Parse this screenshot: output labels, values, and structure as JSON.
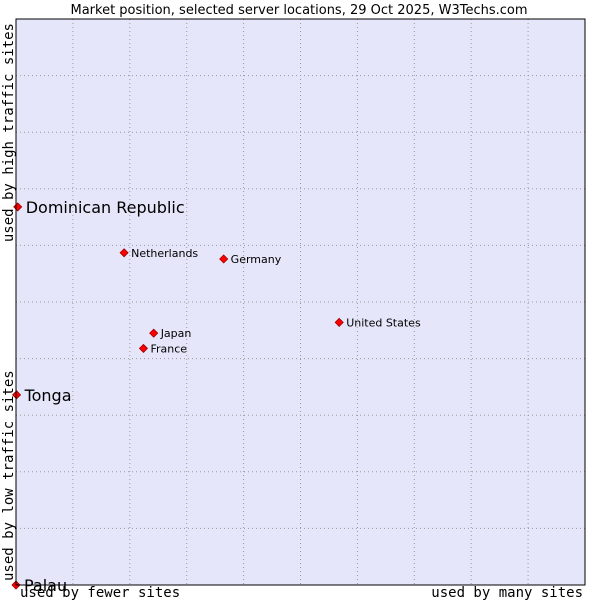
{
  "chart_data": {
    "type": "scatter",
    "title": "Market position, selected server locations, 29 Oct 2025, W3Techs.com",
    "xlabel_left": "used by fewer sites",
    "xlabel_right": "used by many sites",
    "ylabel_bottom": "used by low traffic sites",
    "ylabel_top": "used by high traffic sites",
    "xlim": [
      0,
      100
    ],
    "ylim": [
      0,
      100
    ],
    "grid": true,
    "colors": {
      "plot_bg": "#e6e6fa",
      "grid": "#999999",
      "marker": "#ff0000",
      "marker_edge": "#990000"
    },
    "points": [
      {
        "label": "Dominican Republic",
        "x": 0.3,
        "y": 66.8,
        "size": "large"
      },
      {
        "label": "Netherlands",
        "x": 19.0,
        "y": 58.7,
        "size": "small"
      },
      {
        "label": "Germany",
        "x": 36.5,
        "y": 57.6,
        "size": "small"
      },
      {
        "label": "United States",
        "x": 56.8,
        "y": 46.4,
        "size": "small"
      },
      {
        "label": "Japan",
        "x": 24.2,
        "y": 44.5,
        "size": "small"
      },
      {
        "label": "France",
        "x": 22.4,
        "y": 41.8,
        "size": "small"
      },
      {
        "label": "Tonga",
        "x": 0.1,
        "y": 33.6,
        "size": "large"
      },
      {
        "label": "Palau",
        "x": 0.0,
        "y": 0.0,
        "size": "large"
      }
    ]
  }
}
